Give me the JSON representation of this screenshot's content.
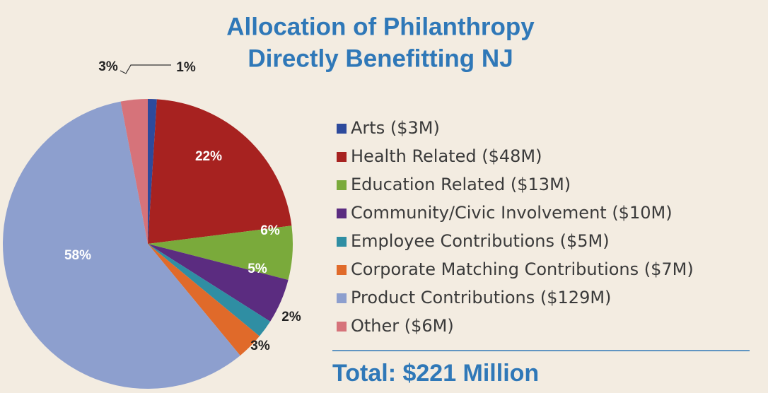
{
  "chart_data": {
    "type": "pie",
    "title": [
      "Allocation of Philanthropy",
      "Directly Benefitting NJ"
    ],
    "categories": [
      "Arts ($3M)",
      "Health Related ($48M)",
      "Education Related ($13M)",
      "Community/Civic Involvement ($10M)",
      "Employee Contributions ($5M)",
      "Corporate Matching Contributions ($7M)",
      "Product Contributions ($129M)",
      "Other ($6M)"
    ],
    "values": [
      1,
      22,
      6,
      5,
      2,
      3,
      58,
      3
    ],
    "value_labels": [
      "1%",
      "22%",
      "6%",
      "5%",
      "2%",
      "3%",
      "58%",
      "3%"
    ],
    "colors": [
      "#2d4a9c",
      "#a72220",
      "#7aaa3b",
      "#5b2c80",
      "#2f8ea3",
      "#e06a2a",
      "#8d9fce",
      "#d6737a"
    ],
    "annotation": "Total: $221 Million"
  }
}
